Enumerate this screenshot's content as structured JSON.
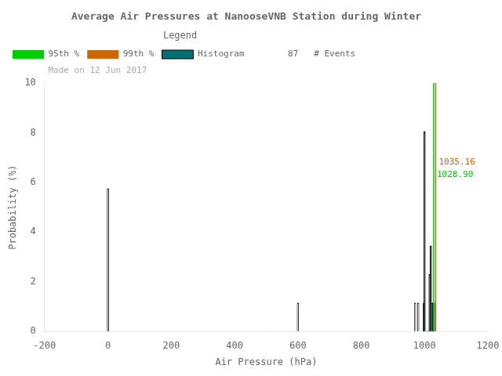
{
  "chart_data": {
    "type": "bar",
    "title": "Average Air Pressures at NanooseVNB Station during Winter",
    "x_label": "Air Pressure (hPa)",
    "y_label": "Probability (%)",
    "xlim": [
      -200,
      1200
    ],
    "ylim": [
      0,
      10
    ],
    "xticks": [
      -200,
      0,
      200,
      400,
      600,
      800,
      1000,
      1200
    ],
    "yticks": [
      0,
      2,
      4,
      6,
      8,
      10
    ],
    "grid": false,
    "legend": "upper left",
    "legend_title": "Legend",
    "x": [
      -2,
      0,
      2,
      598,
      600,
      602,
      958,
      960,
      962,
      964,
      966,
      968,
      970,
      972,
      974,
      976,
      978,
      980,
      982,
      984,
      986,
      988,
      990,
      992,
      994,
      996,
      998,
      1000,
      1002,
      1004,
      1006,
      1008,
      1010,
      1012,
      1014,
      1016,
      1018,
      1020,
      1022,
      1024,
      1026,
      1028,
      1030,
      1032,
      1034
    ],
    "series": [
      {
        "name": "95th %",
        "type": "vline",
        "color": "#00cc00",
        "x": [
          1028.9
        ]
      },
      {
        "name": "99th %",
        "type": "vline",
        "color": "#cc6600",
        "x": [
          1035.16
        ]
      },
      {
        "name": "Histogram",
        "type": "bar",
        "color": "#007070",
        "values": [
          0,
          5.75,
          0,
          0,
          1.15,
          0,
          0,
          0,
          0,
          0,
          0,
          0,
          1.15,
          0,
          0,
          0,
          0,
          1.15,
          0,
          0,
          0,
          0,
          0,
          0,
          0,
          0,
          1.15,
          8.05,
          0,
          0,
          0,
          0,
          0,
          0,
          0,
          2.3,
          0,
          3.45,
          0,
          1.15,
          0,
          1.15,
          1.15,
          0,
          0
        ],
        "colors": [
          "#ffffff",
          "#ffffff",
          "#ffffff",
          "#ffffff",
          "#ffffff",
          "#ffffff",
          "#ffffff",
          "#ffffff",
          "#ffffff",
          "#ffffff",
          "#ffffff",
          "#ffffff",
          "#ffffff",
          "#ffffff",
          "#ffffff",
          "#ffffff",
          "#ffffff",
          "#ffffff",
          "#ffffff",
          "#ffffff",
          "#ffffff",
          "#ffffff",
          "#ffffff",
          "#ffffff",
          "#ffffff",
          "#ffffff",
          "#ffffff",
          "#007070",
          "#ffffff",
          "#007070",
          "#ffffff",
          "#007070",
          "#ffffff",
          "#007070",
          "#ffffff",
          "#007070",
          "#ffffff",
          "#007070",
          "#ffffff",
          "#007070",
          "#ffffff",
          "#ffffff",
          "#ffffff",
          "#ffffff",
          "#ffffff"
        ]
      }
    ],
    "annotations": [
      {
        "text": "1035.16",
        "x": 1035.16,
        "y": 6.8,
        "color": "#cc6600"
      },
      {
        "text": "1028.90",
        "x": 1028.9,
        "y": 6.3,
        "color": "#00cc00"
      },
      {
        "text": "87   # Events",
        "place": "legend"
      },
      {
        "text": "Made on 12 Jun 2017",
        "place": "legend",
        "color": "#aaaaaa"
      }
    ]
  }
}
